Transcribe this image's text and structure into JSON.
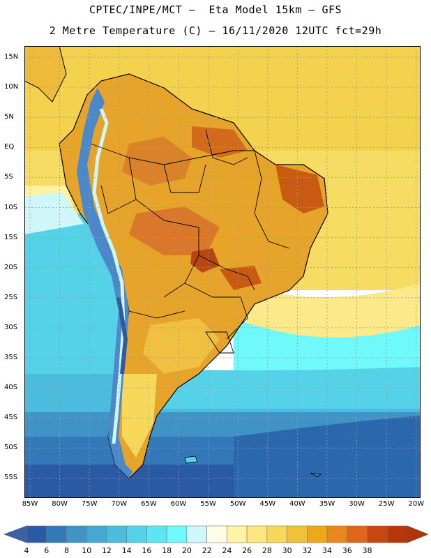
{
  "header": {
    "title_line1": "CPTEC/INPE/MCT –  Eta Model 15km – GFS",
    "title_line2": "2 Metre Temperature (C) – 16/11/2020 12UTC fct=29h"
  },
  "map": {
    "lat_labels": [
      "15N",
      "10N",
      "5N",
      "EQ",
      "5S",
      "10S",
      "15S",
      "20S",
      "25S",
      "30S",
      "35S",
      "40S",
      "45S",
      "50S",
      "55S"
    ],
    "lon_labels": [
      "85W",
      "80W",
      "75W",
      "70W",
      "65W",
      "60W",
      "55W",
      "50W",
      "45W",
      "40W",
      "35W",
      "30W",
      "25W",
      "20W"
    ],
    "colors": {
      "ocean_north": "#f5d24e",
      "ocean_mid": "#fbe98a",
      "ocean_cool": "#5fe2ec",
      "ocean_cold": "#3aa6d0",
      "ocean_coldest": "#2b67ad",
      "land_hot": "#e6a52a",
      "land_hottest": "#c85a12",
      "andes": "#4a88c9",
      "coastline": "#000000",
      "grid": "#888888"
    }
  },
  "colorbar": {
    "labels": [
      "4",
      "6",
      "8",
      "10",
      "12",
      "14",
      "16",
      "18",
      "20",
      "22",
      "24",
      "26",
      "28",
      "30",
      "32",
      "34",
      "36",
      "38"
    ],
    "colors": [
      "#2b5aa5",
      "#3378b8",
      "#3f93c7",
      "#44a8d3",
      "#4cbcde",
      "#55d2e8",
      "#5de6f1",
      "#6ff9fb",
      "#cff7fa",
      "#fffbe6",
      "#fff3a4",
      "#fce783",
      "#f7d85b",
      "#efc23a",
      "#eea91a",
      "#e8871e",
      "#dd661a",
      "#c8460f",
      "#b8360b"
    ],
    "left_arrow_color": "#3a60a8",
    "right_arrow_color": "#b03408"
  }
}
